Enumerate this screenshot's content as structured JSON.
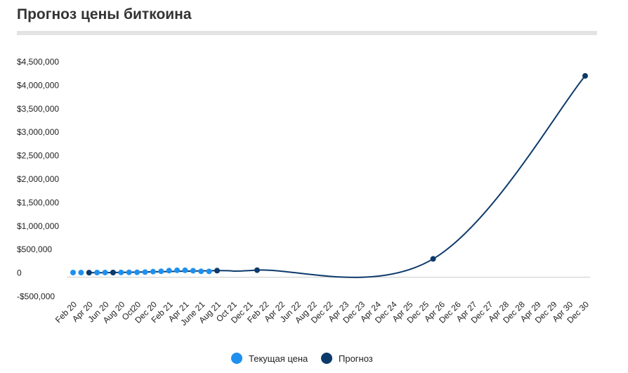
{
  "title": "Прогноз цены биткоина",
  "colors": {
    "current": "#1e90ef",
    "forecast": "#0c3a6b",
    "zero_line": "#cccccc",
    "title_rule": "#e3e3e3"
  },
  "chart_data": {
    "type": "line",
    "title": "Прогноз цены биткоина",
    "categories": [
      "Feb 20",
      "Apr 20",
      "Jun 20",
      "Aug 20",
      "Oct20",
      "Dec 20",
      "Feb 21",
      "Apr 21",
      "June 21",
      "Aug 21",
      "Oct 21",
      "Dec 21",
      "Feb 22",
      "Apr 22",
      "Jun 22",
      "Aug 22",
      "Dec 22",
      "Apr 23",
      "Dec 23",
      "Apr 24",
      "Dec 24",
      "Apr 25",
      "Dec 25",
      "Apr 26",
      "Dec 26",
      "Apr 27",
      "Dec 27",
      "Apr 28",
      "Dec 28",
      "Apr 29",
      "Dec 29",
      "Apr 30",
      "Dec 30"
    ],
    "y_ticks": [
      {
        "value": 4500000,
        "label": "$4,500,000"
      },
      {
        "value": 4000000,
        "label": "$4,000,000"
      },
      {
        "value": 3500000,
        "label": "$3,500,000"
      },
      {
        "value": 3000000,
        "label": "$3,000,000"
      },
      {
        "value": 2500000,
        "label": "$2,500,000"
      },
      {
        "value": 2000000,
        "label": "$2,000,000"
      },
      {
        "value": 1500000,
        "label": "$1,500,000"
      },
      {
        "value": 1000000,
        "label": "$1,000,000"
      },
      {
        "value": 500000,
        "label": "$500,000"
      },
      {
        "value": 0,
        "label": "0"
      },
      {
        "value": -500000,
        "label": "-$500,000"
      }
    ],
    "ylim": [
      -500000,
      4500000
    ],
    "grid": false,
    "legend_position": "bottom",
    "series": [
      {
        "name": "Текущая цена",
        "points": [
          {
            "x": 0,
            "y": 9000
          },
          {
            "x": 0.5,
            "y": 8500
          },
          {
            "x": 1.5,
            "y": 9000
          },
          {
            "x": 2.0,
            "y": 9500
          },
          {
            "x": 2.5,
            "y": 11000
          },
          {
            "x": 3.0,
            "y": 11500
          },
          {
            "x": 3.5,
            "y": 13000
          },
          {
            "x": 4.0,
            "y": 14000
          },
          {
            "x": 4.5,
            "y": 19000
          },
          {
            "x": 5.0,
            "y": 29000
          },
          {
            "x": 5.5,
            "y": 36000
          },
          {
            "x": 6.0,
            "y": 50000
          },
          {
            "x": 6.5,
            "y": 57000
          },
          {
            "x": 7.0,
            "y": 57000
          },
          {
            "x": 7.5,
            "y": 48000
          },
          {
            "x": 8.0,
            "y": 36000
          },
          {
            "x": 8.5,
            "y": 34000
          }
        ]
      },
      {
        "name": "Прогноз",
        "points": [
          {
            "x": 1.0,
            "y": 7000
          },
          {
            "x": 2.5,
            "y": 9000
          },
          {
            "x": 9.0,
            "y": 50000
          },
          {
            "x": 11.5,
            "y": 60000
          },
          {
            "x": 22.5,
            "y": 300000
          },
          {
            "x": 32.0,
            "y": 4200000
          }
        ]
      }
    ]
  }
}
